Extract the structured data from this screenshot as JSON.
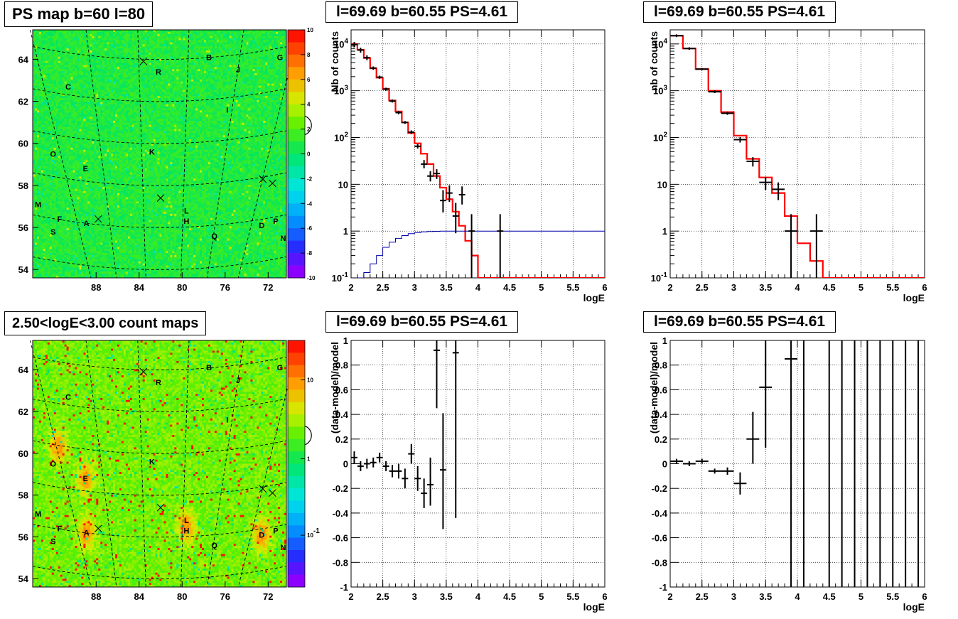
{
  "titles": {
    "ps_map": "PS map b=60 l=80",
    "count_map": "2.50<logE<3.00 count maps",
    "spec1": "l=69.69 b=60.55 PS=4.61",
    "spec2": "l=69.69 b=60.55 PS=4.61",
    "res1": "l=69.69 b=60.55 PS=4.61",
    "res2": "l=69.69 b=60.55 PS=4.61"
  },
  "colors": {
    "data": "#000000",
    "model": "#ff0000",
    "acceptance": "#0000aa",
    "grid": "#000000"
  },
  "chart_data": [
    {
      "id": "ps_map",
      "type": "heatmap",
      "title": "PS map b=60 l=80",
      "xticks": [
        "88",
        "84",
        "80",
        "76",
        "72"
      ],
      "yticks": [
        "54",
        "56",
        "58",
        "60",
        "62",
        "64"
      ],
      "colorbar_ticks": [
        "10",
        "8",
        "6",
        "4",
        "2",
        "0",
        "-2",
        "-4",
        "-6",
        "-8",
        "-10"
      ],
      "zlim": [
        -10,
        10
      ],
      "labels": [
        {
          "t": "B",
          "l": 77.5,
          "b": 64.1
        },
        {
          "t": "R",
          "l": 82.2,
          "b": 63.4
        },
        {
          "t": "J",
          "l": 74.8,
          "b": 63.5
        },
        {
          "t": "G",
          "l": 70.9,
          "b": 64.1
        },
        {
          "t": "C",
          "l": 90.6,
          "b": 62.7
        },
        {
          "t": "I",
          "l": 75.8,
          "b": 61.6
        },
        {
          "t": "K",
          "l": 82.8,
          "b": 59.6
        },
        {
          "t": "O",
          "l": 92.0,
          "b": 59.5
        },
        {
          "t": "E",
          "l": 89.0,
          "b": 58.8
        },
        {
          "t": "M",
          "l": 93.4,
          "b": 57.1
        },
        {
          "t": "L",
          "l": 79.6,
          "b": 56.8
        },
        {
          "t": "H",
          "l": 79.6,
          "b": 56.3
        },
        {
          "t": "F",
          "l": 91.4,
          "b": 56.4
        },
        {
          "t": "A",
          "l": 88.9,
          "b": 56.2
        },
        {
          "t": "D",
          "l": 72.6,
          "b": 56.1
        },
        {
          "t": "P",
          "l": 71.3,
          "b": 56.3
        },
        {
          "t": "S",
          "l": 92.0,
          "b": 55.8
        },
        {
          "t": "Q",
          "l": 77.0,
          "b": 55.6
        },
        {
          "t": "N",
          "l": 70.6,
          "b": 55.5
        }
      ],
      "crosses": [
        {
          "l": 83.6,
          "b": 63.9
        },
        {
          "l": 69.6,
          "b": 65.0
        },
        {
          "l": 72.5,
          "b": 58.3
        },
        {
          "l": 71.6,
          "b": 58.1
        },
        {
          "l": 82.0,
          "b": 57.4
        },
        {
          "l": 87.8,
          "b": 56.4
        }
      ],
      "circle": {
        "l": 69.69,
        "b": 60.55
      }
    },
    {
      "id": "count_map",
      "type": "heatmap",
      "title": "2.50<logE<3.00 count maps",
      "xticks": [
        "88",
        "84",
        "80",
        "76",
        "72"
      ],
      "yticks": [
        "54",
        "56",
        "58",
        "60",
        "62",
        "64"
      ],
      "colorbar_ticks": [
        "10",
        "1",
        "10^-1"
      ],
      "zscale": "log",
      "labels": [
        {
          "t": "B",
          "l": 77.5,
          "b": 64.1
        },
        {
          "t": "R",
          "l": 82.2,
          "b": 63.4
        },
        {
          "t": "J",
          "l": 74.8,
          "b": 63.5
        },
        {
          "t": "G",
          "l": 70.9,
          "b": 64.1
        },
        {
          "t": "C",
          "l": 90.6,
          "b": 62.7
        },
        {
          "t": "I",
          "l": 75.8,
          "b": 61.6
        },
        {
          "t": "K",
          "l": 82.8,
          "b": 59.6
        },
        {
          "t": "O",
          "l": 92.0,
          "b": 59.5
        },
        {
          "t": "E",
          "l": 89.0,
          "b": 58.8
        },
        {
          "t": "M",
          "l": 93.4,
          "b": 57.1
        },
        {
          "t": "L",
          "l": 79.6,
          "b": 56.8
        },
        {
          "t": "H",
          "l": 79.6,
          "b": 56.3
        },
        {
          "t": "F",
          "l": 91.4,
          "b": 56.4
        },
        {
          "t": "A",
          "l": 88.9,
          "b": 56.2
        },
        {
          "t": "D",
          "l": 72.6,
          "b": 56.1
        },
        {
          "t": "P",
          "l": 71.3,
          "b": 56.3
        },
        {
          "t": "S",
          "l": 92.0,
          "b": 55.8
        },
        {
          "t": "Q",
          "l": 77.0,
          "b": 55.6
        },
        {
          "t": "N",
          "l": 70.6,
          "b": 55.5
        }
      ],
      "crosses": [
        {
          "l": 83.6,
          "b": 63.9
        },
        {
          "l": 69.6,
          "b": 65.0
        },
        {
          "l": 72.5,
          "b": 58.3
        },
        {
          "l": 71.6,
          "b": 58.1
        },
        {
          "l": 82.0,
          "b": 57.4
        },
        {
          "l": 87.8,
          "b": 56.4
        }
      ],
      "circle": {
        "l": 69.69,
        "b": 60.55
      },
      "hotspots": [
        {
          "l": 88.9,
          "b": 56.2
        },
        {
          "l": 91.5,
          "b": 60.3
        },
        {
          "l": 89.0,
          "b": 58.8
        },
        {
          "l": 79.6,
          "b": 56.5
        },
        {
          "l": 72.6,
          "b": 56.1
        }
      ]
    },
    {
      "id": "spec1",
      "type": "line",
      "title": "l=69.69 b=60.55 PS=4.61",
      "xlabel": "logE",
      "ylabel": "Nb of counts",
      "xlim": [
        2,
        6
      ],
      "ylim": [
        0.1,
        20000
      ],
      "yscale": "log",
      "xticks": [
        "2",
        "2.5",
        "3",
        "3.5",
        "4",
        "4.5",
        "5",
        "5.5",
        "6"
      ],
      "yticks": [
        "10^-1",
        "1",
        "10",
        "10^2",
        "10^3",
        "10^4"
      ],
      "grid": true,
      "series": [
        {
          "kind": "hist",
          "color": "#ff0000",
          "edges": [
            2,
            2.1,
            2.2,
            2.3,
            2.4,
            2.5,
            2.6,
            2.7,
            2.8,
            2.9,
            3.0,
            3.1,
            3.2,
            3.3,
            3.4,
            3.5,
            3.6,
            3.7,
            3.8,
            3.9,
            4.0,
            6.0
          ],
          "values": [
            10000,
            7500,
            5000,
            3000,
            1900,
            1100,
            620,
            360,
            210,
            125,
            75,
            45,
            27,
            15,
            8.5,
            4.8,
            2.6,
            1.3,
            0.62,
            0.3,
            0.1
          ]
        },
        {
          "kind": "hist",
          "color": "#0000aa",
          "edges": [
            2.1,
            2.2,
            2.3,
            2.4,
            2.5,
            2.6,
            2.7,
            2.8,
            2.9,
            3.0,
            3.1,
            3.2,
            3.3,
            3.4,
            3.5,
            3.6,
            3.7,
            3.8,
            4.0,
            6.0
          ],
          "values": [
            0.07,
            0.13,
            0.2,
            0.3,
            0.45,
            0.58,
            0.7,
            0.8,
            0.88,
            0.93,
            0.96,
            0.98,
            0.99,
            1,
            1,
            1,
            1,
            1,
            1
          ]
        },
        {
          "kind": "points",
          "color": "#000000",
          "x": [
            2.05,
            2.15,
            2.25,
            2.35,
            2.45,
            2.55,
            2.65,
            2.75,
            2.85,
            2.95,
            3.05,
            3.15,
            3.25,
            3.35,
            3.45,
            3.55,
            3.65,
            3.75,
            3.9,
            4.35
          ],
          "y": [
            9700,
            7400,
            5100,
            3050,
            1950,
            1080,
            600,
            340,
            210,
            130,
            65,
            27,
            15,
            17,
            4.5,
            6.5,
            2.1,
            6.0,
            1.0,
            1.0
          ],
          "ylow": [
            8500,
            6500,
            4500,
            2800,
            1800,
            1000,
            560,
            315,
            195,
            118,
            58,
            22,
            11.5,
            13,
            2.5,
            4.2,
            0.9,
            3.7,
            0.1,
            0.1
          ],
          "yhigh": [
            11000,
            8300,
            5700,
            3300,
            2100,
            1160,
            650,
            370,
            225,
            142,
            72,
            33,
            19,
            21,
            7.5,
            9.5,
            4.0,
            9.0,
            2.3,
            2.3
          ],
          "xerr": 0.05
        }
      ]
    },
    {
      "id": "spec2",
      "type": "line",
      "title": "l=69.69 b=60.55 PS=4.61",
      "xlabel": "logE",
      "ylabel": "nb of counts",
      "xlim": [
        2,
        6
      ],
      "ylim": [
        0.1,
        20000
      ],
      "yscale": "log",
      "xticks": [
        "2",
        "2.5",
        "3",
        "3.5",
        "4",
        "4.5",
        "5",
        "5.5",
        "6"
      ],
      "yticks": [
        "10^-1",
        "1",
        "10",
        "10^2",
        "10^3",
        "10^4"
      ],
      "grid": true,
      "series": [
        {
          "kind": "hist",
          "color": "#ff0000",
          "edges": [
            2,
            2.2,
            2.4,
            2.6,
            2.8,
            3.0,
            3.2,
            3.4,
            3.6,
            3.8,
            4.0,
            4.2,
            4.4,
            6.0
          ],
          "values": [
            15000,
            8000,
            2900,
            1000,
            350,
            110,
            35,
            14,
            6.5,
            2.1,
            0.55,
            0.23,
            0.1
          ]
        },
        {
          "kind": "points",
          "color": "#000000",
          "x": [
            2.1,
            2.3,
            2.5,
            2.7,
            2.9,
            3.1,
            3.3,
            3.5,
            3.7,
            3.9,
            4.3
          ],
          "y": [
            15000,
            8000,
            2900,
            950,
            330,
            90,
            31,
            11,
            7.8,
            1.0,
            1.0
          ],
          "ylow": [
            14000,
            7500,
            2750,
            890,
            305,
            78,
            24,
            7.5,
            4.6,
            0.1,
            0.1
          ],
          "yhigh": [
            16000,
            8500,
            3050,
            1010,
            355,
            102,
            38,
            14.5,
            11,
            2.3,
            2.3
          ],
          "xerr": 0.1
        }
      ]
    },
    {
      "id": "res1",
      "type": "scatter",
      "title": "l=69.69 b=60.55 PS=4.61",
      "xlabel": "logE",
      "ylabel": "(data-model)/model",
      "xlim": [
        2,
        6
      ],
      "ylim": [
        -1,
        1
      ],
      "xticks": [
        "2",
        "2.5",
        "3",
        "3.5",
        "4",
        "4.5",
        "5",
        "5.5",
        "6"
      ],
      "yticks": [
        "-1",
        "-0.8",
        "-0.6",
        "-0.4",
        "-0.2",
        "0",
        "0.2",
        "0.4",
        "0.6",
        "0.8",
        "1"
      ],
      "grid": true,
      "series": [
        {
          "kind": "points",
          "color": "#000000",
          "x": [
            2.05,
            2.15,
            2.25,
            2.35,
            2.45,
            2.55,
            2.65,
            2.75,
            2.85,
            2.95,
            3.05,
            3.15,
            3.25,
            3.35,
            3.45,
            3.65
          ],
          "y": [
            0.05,
            -0.02,
            0.0,
            0.01,
            0.05,
            -0.02,
            -0.06,
            -0.06,
            -0.12,
            0.08,
            -0.12,
            -0.24,
            -0.17,
            0.92,
            -0.05,
            0.9
          ],
          "ylow": [
            0.0,
            -0.06,
            -0.04,
            -0.03,
            0.01,
            -0.06,
            -0.11,
            -0.12,
            -0.2,
            0.0,
            -0.22,
            -0.36,
            -0.34,
            0.45,
            -0.53,
            -0.44
          ],
          "yhigh": [
            0.1,
            0.02,
            0.04,
            0.05,
            0.09,
            0.02,
            -0.01,
            0.0,
            -0.04,
            0.16,
            -0.02,
            -0.12,
            0.05,
            1.0,
            0.41,
            1.0
          ],
          "xerr": 0.05
        }
      ]
    },
    {
      "id": "res2",
      "type": "scatter",
      "title": "l=69.69 b=60.55 PS=4.61",
      "xlabel": "logE",
      "ylabel": "(data-model)/model",
      "xlim": [
        2,
        6
      ],
      "ylim": [
        -1,
        1
      ],
      "xticks": [
        "2",
        "2.5",
        "3",
        "3.5",
        "4",
        "4.5",
        "5",
        "5.5",
        "6"
      ],
      "yticks": [
        "-1",
        "-0.8",
        "-0.6",
        "-0.4",
        "-0.2",
        "0",
        "0.2",
        "0.4",
        "0.6",
        "0.8",
        "1"
      ],
      "grid": true,
      "series": [
        {
          "kind": "points",
          "color": "#000000",
          "x": [
            2.1,
            2.3,
            2.5,
            2.7,
            2.9,
            3.1,
            3.3,
            3.5,
            3.9
          ],
          "y": [
            0.02,
            0.0,
            0.02,
            -0.06,
            -0.06,
            -0.16,
            0.2,
            0.62,
            0.85
          ],
          "ylow": [
            0.0,
            -0.02,
            0.0,
            -0.08,
            -0.09,
            -0.25,
            0.0,
            0.13,
            -1.0
          ],
          "yhigh": [
            0.04,
            0.02,
            0.04,
            -0.04,
            -0.03,
            -0.07,
            0.42,
            1.0,
            1.0
          ],
          "xerr": 0.1
        },
        {
          "kind": "vlines",
          "color": "#000000",
          "x": [
            4.1,
            4.5,
            4.7,
            4.9,
            5.1,
            5.3,
            5.5,
            5.7,
            5.9
          ]
        }
      ]
    }
  ]
}
